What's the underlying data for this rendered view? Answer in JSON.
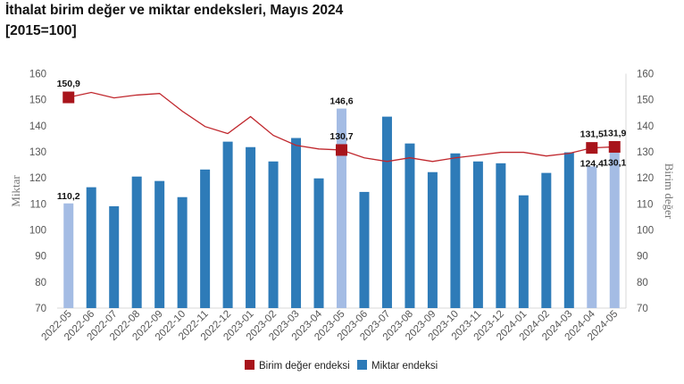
{
  "header": {
    "title": "İthalat birim değer ve miktar endeksleri, Mayıs 2024",
    "subtitle": "[2015=100]"
  },
  "chart_data": {
    "type": "bar+line",
    "title": "İthalat birim değer ve miktar endeksleri, Mayıs 2024",
    "subtitle": "[2015=100]",
    "categories": [
      "2022-05",
      "2022-06",
      "2022-07",
      "2022-08",
      "2022-09",
      "2022-10",
      "2022-11",
      "2022-12",
      "2023-01",
      "2023-02",
      "2023-03",
      "2023-04",
      "2023-05",
      "2023-06",
      "2023-07",
      "2023-08",
      "2023-09",
      "2023-10",
      "2023-11",
      "2023-12",
      "2024-01",
      "2024-02",
      "2024-03",
      "2024-04",
      "2024-05"
    ],
    "ylabel_left": "Miktar",
    "ylabel_right": "Birim değer",
    "ylim": [
      70,
      160
    ],
    "yticks": [
      70,
      80,
      90,
      100,
      110,
      120,
      130,
      140,
      150,
      160
    ],
    "legend_position": "bottom",
    "grid": false,
    "series": [
      {
        "name": "Birim değer endeksi",
        "type": "line",
        "axis": "right",
        "color": "#c0272d",
        "marker_color": "#a8141b",
        "values": [
          150.9,
          152.8,
          150.7,
          151.8,
          152.4,
          145.6,
          139.7,
          137.0,
          143.5,
          136.3,
          132.5,
          131.1,
          130.7,
          127.7,
          126.3,
          127.7,
          126.3,
          127.7,
          128.7,
          129.8,
          129.8,
          128.4,
          129.4,
          131.5,
          131.9
        ],
        "labeled_indices": [
          0,
          12,
          23,
          24
        ],
        "labels": [
          "150,9",
          "130,7",
          "131,5",
          "131,9"
        ]
      },
      {
        "name": "Miktar endeksi",
        "type": "bar",
        "axis": "left",
        "color": "#2e7bb8",
        "highlight_color": "#a4bce4",
        "values": [
          110.2,
          116.4,
          109.1,
          120.5,
          118.8,
          112.6,
          123.2,
          133.9,
          131.8,
          126.3,
          135.3,
          119.8,
          146.6,
          114.6,
          143.5,
          133.2,
          122.2,
          129.4,
          126.3,
          125.6,
          113.3,
          121.9,
          129.8,
          124.4,
          130.1
        ],
        "highlight_indices": [
          0,
          12,
          23,
          24
        ],
        "labels": [
          "110,2",
          "146,6",
          "124,4",
          "130,1"
        ]
      }
    ]
  }
}
